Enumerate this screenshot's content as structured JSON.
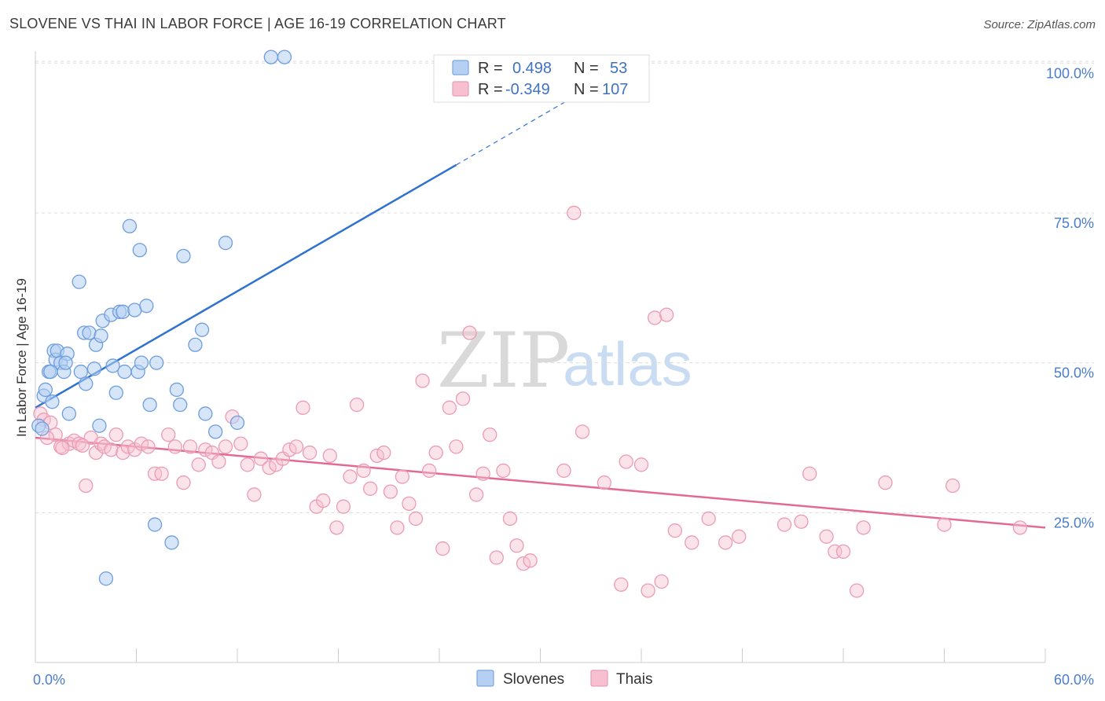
{
  "title": "SLOVENE VS THAI IN LABOR FORCE | AGE 16-19 CORRELATION CHART",
  "source": "Source: ZipAtlas.com",
  "chart_data": {
    "type": "scatter",
    "ylabel": "In Labor Force | Age 16-19",
    "xlim": [
      0,
      60
    ],
    "ylim": [
      0,
      102
    ],
    "x_tick_labels": [
      "0.0%",
      "60.0%"
    ],
    "y_ticks": [
      25,
      50,
      75,
      100
    ],
    "y_tick_labels": [
      "25.0%",
      "50.0%",
      "75.0%",
      "100.0%"
    ],
    "watermark": {
      "zip": "ZIP",
      "atlas": "atlas"
    },
    "legend": {
      "r_label": "R =",
      "n_label": "N =",
      "entries": [
        {
          "name": "Slovenes",
          "r": "0.498",
          "n": "53",
          "fill": "#b5d0f3",
          "stroke": "#7aa5e0"
        },
        {
          "name": "Thais",
          "r": "-0.349",
          "n": "107",
          "fill": "#f7c0d1",
          "stroke": "#ec9bb6"
        }
      ]
    },
    "series": [
      {
        "name": "Slovenes",
        "color": "#7aa5e0",
        "trend": {
          "x0": 0,
          "y0": 42.5,
          "x1": 25,
          "y1": 83,
          "dash_to_x": 33,
          "dash_to_y": 96,
          "color": "#2f72d0"
        },
        "points": [
          [
            0.2,
            39.5
          ],
          [
            0.5,
            44.5
          ],
          [
            0.6,
            45.5
          ],
          [
            0.8,
            48.5
          ],
          [
            0.9,
            48.5
          ],
          [
            1.0,
            43.5
          ],
          [
            1.1,
            52
          ],
          [
            1.2,
            50.5
          ],
          [
            1.3,
            52
          ],
          [
            1.5,
            50
          ],
          [
            1.7,
            48.5
          ],
          [
            1.9,
            51.5
          ],
          [
            1.8,
            50
          ],
          [
            2.0,
            41.5
          ],
          [
            2.6,
            63.5
          ],
          [
            2.7,
            48.5
          ],
          [
            2.9,
            55
          ],
          [
            3.0,
            46.5
          ],
          [
            3.2,
            55
          ],
          [
            3.5,
            49
          ],
          [
            3.6,
            53
          ],
          [
            3.8,
            39.5
          ],
          [
            3.9,
            54.5
          ],
          [
            4.0,
            57
          ],
          [
            4.5,
            58
          ],
          [
            4.6,
            49.5
          ],
          [
            4.8,
            45
          ],
          [
            5.0,
            58.5
          ],
          [
            5.2,
            58.5
          ],
          [
            5.3,
            48.5
          ],
          [
            5.6,
            72.8
          ],
          [
            5.9,
            58.8
          ],
          [
            6.1,
            48.5
          ],
          [
            6.2,
            68.8
          ],
          [
            6.3,
            50
          ],
          [
            6.6,
            59.5
          ],
          [
            6.8,
            43
          ],
          [
            7.1,
            23
          ],
          [
            7.2,
            50
          ],
          [
            8.1,
            20
          ],
          [
            8.4,
            45.5
          ],
          [
            8.6,
            43
          ],
          [
            8.8,
            67.8
          ],
          [
            9.5,
            53
          ],
          [
            9.9,
            55.5
          ],
          [
            10.1,
            41.5
          ],
          [
            10.7,
            38.5
          ],
          [
            11.3,
            70
          ],
          [
            12.0,
            40
          ],
          [
            14.0,
            101
          ],
          [
            14.8,
            101
          ],
          [
            4.2,
            14
          ],
          [
            0.4,
            39
          ]
        ]
      },
      {
        "name": "Thais",
        "color": "#ec9bb6",
        "trend": {
          "x0": 0,
          "y0": 37.5,
          "x1": 60,
          "y1": 22.5,
          "color": "#e26b96"
        },
        "points": [
          [
            0.3,
            41.5
          ],
          [
            0.5,
            40.5
          ],
          [
            0.9,
            40
          ],
          [
            1.2,
            38
          ],
          [
            1.5,
            36
          ],
          [
            2.0,
            36.5
          ],
          [
            2.3,
            37
          ],
          [
            2.6,
            36.5
          ],
          [
            3.0,
            29.5
          ],
          [
            3.3,
            37.5
          ],
          [
            3.6,
            35
          ],
          [
            3.9,
            36.5
          ],
          [
            4.1,
            36
          ],
          [
            4.5,
            35.5
          ],
          [
            4.8,
            38
          ],
          [
            5.2,
            35
          ],
          [
            5.5,
            36
          ],
          [
            5.9,
            35.5
          ],
          [
            6.3,
            36.5
          ],
          [
            6.7,
            36
          ],
          [
            7.1,
            31.5
          ],
          [
            7.5,
            31.5
          ],
          [
            7.9,
            38
          ],
          [
            8.3,
            36
          ],
          [
            8.8,
            30
          ],
          [
            9.2,
            36
          ],
          [
            9.7,
            33
          ],
          [
            10.1,
            35.5
          ],
          [
            10.5,
            35
          ],
          [
            10.9,
            33.5
          ],
          [
            11.3,
            36
          ],
          [
            11.7,
            41
          ],
          [
            12.2,
            36.5
          ],
          [
            12.6,
            33
          ],
          [
            13.0,
            28
          ],
          [
            13.4,
            34
          ],
          [
            13.9,
            32.5
          ],
          [
            14.3,
            33
          ],
          [
            14.7,
            34
          ],
          [
            15.1,
            35.5
          ],
          [
            15.5,
            36
          ],
          [
            15.9,
            42.5
          ],
          [
            16.3,
            35
          ],
          [
            16.7,
            26
          ],
          [
            17.1,
            27
          ],
          [
            17.5,
            34.5
          ],
          [
            17.9,
            22.5
          ],
          [
            18.3,
            26
          ],
          [
            18.7,
            31
          ],
          [
            19.1,
            43
          ],
          [
            19.5,
            32
          ],
          [
            19.9,
            29
          ],
          [
            20.3,
            34.5
          ],
          [
            20.7,
            35
          ],
          [
            21.1,
            28.5
          ],
          [
            21.5,
            22.5
          ],
          [
            21.8,
            31
          ],
          [
            22.2,
            26.5
          ],
          [
            22.6,
            24
          ],
          [
            23.0,
            47
          ],
          [
            23.4,
            32
          ],
          [
            23.8,
            35
          ],
          [
            24.2,
            19
          ],
          [
            24.6,
            42.5
          ],
          [
            25.0,
            36
          ],
          [
            25.4,
            44
          ],
          [
            25.8,
            55
          ],
          [
            26.2,
            28
          ],
          [
            26.6,
            31.5
          ],
          [
            27.0,
            38
          ],
          [
            27.4,
            17.5
          ],
          [
            27.8,
            32
          ],
          [
            28.2,
            24
          ],
          [
            28.6,
            19.5
          ],
          [
            29.0,
            16.5
          ],
          [
            29.4,
            17
          ],
          [
            31.4,
            32
          ],
          [
            32.0,
            75
          ],
          [
            32.5,
            38.5
          ],
          [
            33.8,
            30
          ],
          [
            34.8,
            13
          ],
          [
            35.1,
            33.5
          ],
          [
            36.0,
            33
          ],
          [
            36.4,
            12
          ],
          [
            36.8,
            57.5
          ],
          [
            37.2,
            13.5
          ],
          [
            37.5,
            58
          ],
          [
            38.0,
            22
          ],
          [
            39.0,
            20
          ],
          [
            40.0,
            24
          ],
          [
            41.0,
            20
          ],
          [
            41.8,
            21
          ],
          [
            44.5,
            23
          ],
          [
            45.5,
            23.5
          ],
          [
            46.0,
            31.5
          ],
          [
            47.0,
            21
          ],
          [
            47.5,
            18.5
          ],
          [
            48.0,
            18.5
          ],
          [
            48.8,
            12
          ],
          [
            49.2,
            22.5
          ],
          [
            50.5,
            30
          ],
          [
            54.0,
            23
          ],
          [
            54.5,
            29.5
          ],
          [
            58.5,
            22.5
          ],
          [
            1.6,
            35.8
          ],
          [
            0.7,
            37.5
          ],
          [
            2.8,
            36.2
          ]
        ]
      }
    ]
  }
}
